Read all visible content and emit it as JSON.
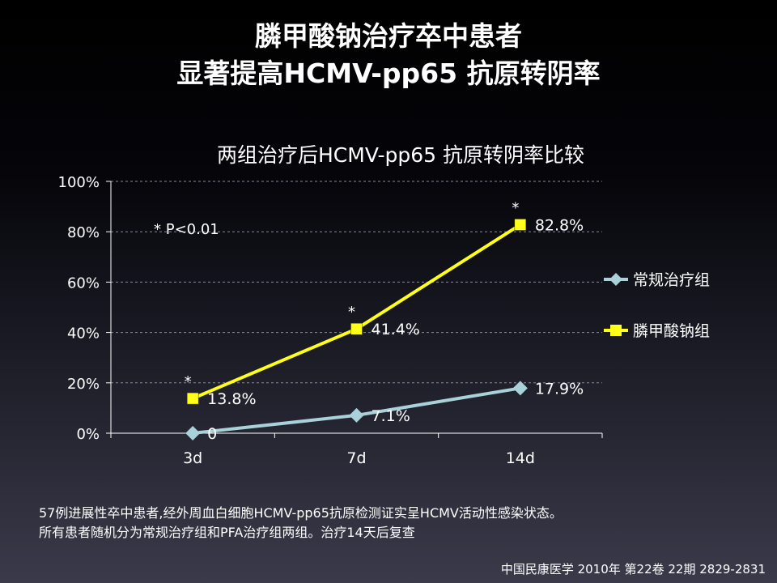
{
  "slide": {
    "title_line1": "膦甲酸钠治疗卒中患者",
    "title_line2": "显著提高HCMV-pp65 抗原转阴率",
    "footnote_line1": "57例进展性卒中患者,经外周血白细胞HCMV-pp65抗原检测证实呈HCMV活动性感染状态。",
    "footnote_line2": "所有患者随机分为常规治疗组和PFA治疗组两组。治疗14天后复查",
    "citation": "中国民康医学 2010年 第22卷 22期  2829-2831"
  },
  "chart_data": {
    "type": "line",
    "title": "两组治疗后HCMV-pp65 抗原转阴率比较",
    "xlabel": "",
    "ylabel": "",
    "categories": [
      "3d",
      "7d",
      "14d"
    ],
    "ylim": [
      0,
      100
    ],
    "yticks": [
      "0%",
      "20%",
      "40%",
      "60%",
      "80%",
      "100%"
    ],
    "grid": true,
    "legend_position": "right",
    "annotation": "* P<0.01",
    "series": [
      {
        "name": "常规治疗组",
        "values": [
          0,
          7.1,
          17.9
        ],
        "labels": [
          "0",
          "7.1%",
          "17.9%"
        ],
        "stars": [
          false,
          false,
          false
        ],
        "color": "#a9d1d9",
        "marker": "diamond"
      },
      {
        "name": "膦甲酸钠组",
        "values": [
          13.8,
          41.4,
          82.8
        ],
        "labels": [
          "13.8%",
          "41.4%",
          "82.8%"
        ],
        "stars": [
          true,
          true,
          true
        ],
        "color": "#ffff19",
        "marker": "square"
      }
    ]
  }
}
